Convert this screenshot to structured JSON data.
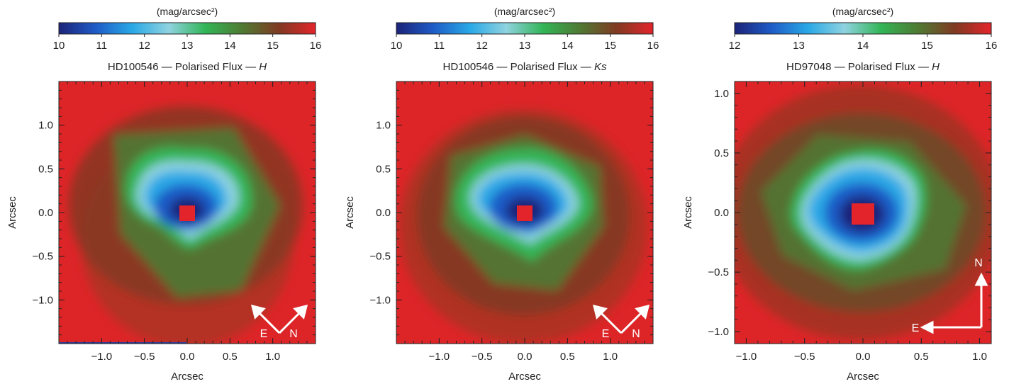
{
  "colors": {
    "cbar_stops": [
      "#1c2378",
      "#1e5bc6",
      "#29a8e6",
      "#8fd3e0",
      "#31b556",
      "#4f7a33",
      "#7f3a22",
      "#e4242b"
    ],
    "background_red": "#dd2528",
    "core_red": "#e4242b",
    "arrow": "#ffffff"
  },
  "panels": [
    {
      "cbar_title": "(mag/arcsec²)",
      "cbar_ticks": [
        "10",
        "11",
        "12",
        "13",
        "14",
        "15",
        "16"
      ],
      "cbar_range": [
        10,
        16
      ],
      "title_prefix": "HD100546 — Polarised Flux — ",
      "title_band": "H",
      "ylabel": "Arcsec",
      "xlabel": "Arcsec",
      "x_ticks": [
        "−1.0",
        "−0.5",
        "0.0",
        "0.5",
        "1.0"
      ],
      "y_ticks": [
        "1.0",
        "0.5",
        "0.0",
        "−0.5",
        "−1.0"
      ],
      "compass": {
        "east": "E",
        "north": "N"
      }
    },
    {
      "cbar_title": "(mag/arcsec²)",
      "cbar_ticks": [
        "10",
        "11",
        "12",
        "13",
        "14",
        "15",
        "16"
      ],
      "cbar_range": [
        10,
        16
      ],
      "title_prefix": "HD100546 — Polarised Flux — ",
      "title_band": "Ks",
      "ylabel": "Arcsec",
      "xlabel": "Arcsec",
      "x_ticks": [
        "−1.0",
        "−0.5",
        "0.0",
        "0.5",
        "1.0"
      ],
      "y_ticks": [
        "1.0",
        "0.5",
        "0.0",
        "−0.5",
        "−1.0"
      ],
      "compass": {
        "east": "E",
        "north": "N"
      }
    },
    {
      "cbar_title": "(mag/arcsec²)",
      "cbar_ticks": [
        "12",
        "13",
        "14",
        "15",
        "16"
      ],
      "cbar_range": [
        12,
        16
      ],
      "title_prefix": "HD97048 — Polarised Flux — ",
      "title_band": "H",
      "ylabel": "Arcsec",
      "xlabel": "Arcsec",
      "x_ticks": [
        "−1.0",
        "−0.5",
        "0.0",
        "0.5",
        "1.0"
      ],
      "y_ticks": [
        "1.0",
        "0.5",
        "0.0",
        "−0.5",
        "−1.0"
      ],
      "compass": {
        "east": "E",
        "north": "N"
      }
    }
  ],
  "chart_data": [
    {
      "type": "heatmap",
      "title": "HD100546 — Polarised Flux — H",
      "xlabel": "Arcsec",
      "ylabel": "Arcsec",
      "xlim": [
        -1.5,
        1.5
      ],
      "ylim": [
        -1.5,
        1.5
      ],
      "colorbar": {
        "label": "(mag/arcsec²)",
        "range": [
          10,
          16
        ],
        "ticks": [
          10,
          11,
          12,
          13,
          14,
          15,
          16
        ]
      }
    },
    {
      "type": "heatmap",
      "title": "HD100546 — Polarised Flux — Ks",
      "xlabel": "Arcsec",
      "ylabel": "Arcsec",
      "xlim": [
        -1.5,
        1.5
      ],
      "ylim": [
        -1.5,
        1.5
      ],
      "colorbar": {
        "label": "(mag/arcsec²)",
        "range": [
          10,
          16
        ],
        "ticks": [
          10,
          11,
          12,
          13,
          14,
          15,
          16
        ]
      }
    },
    {
      "type": "heatmap",
      "title": "HD97048 — Polarised Flux — H",
      "xlabel": "Arcsec",
      "ylabel": "Arcsec",
      "xlim": [
        -1.1,
        1.1
      ],
      "ylim": [
        -1.1,
        1.1
      ],
      "colorbar": {
        "label": "(mag/arcsec²)",
        "range": [
          12,
          16
        ],
        "ticks": [
          12,
          13,
          14,
          15,
          16
        ]
      }
    }
  ]
}
